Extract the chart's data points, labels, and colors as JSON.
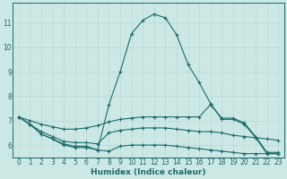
{
  "xlabel": "Humidex (Indice chaleur)",
  "background_color": "#cce8e4",
  "line_color": "#1a6b6b",
  "grid_color": "#b8d8d4",
  "xlim": [
    -0.5,
    23.5
  ],
  "ylim": [
    5.5,
    11.8
  ],
  "yticks": [
    6,
    7,
    8,
    9,
    10,
    11
  ],
  "xticks": [
    0,
    1,
    2,
    3,
    4,
    5,
    6,
    7,
    8,
    9,
    10,
    11,
    12,
    13,
    14,
    15,
    16,
    17,
    18,
    19,
    20,
    21,
    22,
    23
  ],
  "line1_x": [
    0,
    1,
    2,
    3,
    4,
    5,
    6,
    7,
    8,
    9,
    10,
    11,
    12,
    13,
    14,
    15,
    16,
    17,
    18,
    19,
    20,
    21,
    22,
    23
  ],
  "line1_y": [
    7.15,
    6.85,
    6.45,
    6.25,
    6.05,
    5.95,
    5.95,
    5.8,
    7.65,
    9.0,
    10.55,
    11.1,
    11.35,
    11.2,
    10.5,
    9.3,
    8.55,
    7.7,
    7.05,
    7.05,
    6.85,
    6.3,
    5.65,
    5.65
  ],
  "line2_x": [
    0,
    1,
    2,
    3,
    4,
    5,
    6,
    7,
    8,
    9,
    10,
    11,
    12,
    13,
    14,
    15,
    16,
    17,
    18,
    19,
    20,
    21,
    22,
    23
  ],
  "line2_y": [
    7.15,
    6.85,
    6.45,
    6.25,
    6.0,
    5.9,
    5.9,
    5.8,
    5.75,
    5.95,
    6.0,
    6.0,
    6.0,
    6.0,
    5.95,
    5.9,
    5.85,
    5.8,
    5.75,
    5.7,
    5.65,
    5.65,
    5.65,
    5.65
  ],
  "line3_x": [
    0,
    1,
    2,
    3,
    4,
    5,
    6,
    7,
    8,
    9,
    10,
    11,
    12,
    13,
    14,
    15,
    16,
    17,
    18,
    19,
    20,
    21,
    22,
    23
  ],
  "line3_y": [
    7.15,
    6.85,
    6.55,
    6.35,
    6.15,
    6.1,
    6.1,
    6.05,
    6.5,
    6.6,
    6.65,
    6.7,
    6.7,
    6.7,
    6.65,
    6.6,
    6.55,
    6.55,
    6.5,
    6.4,
    6.35,
    6.3,
    6.25,
    6.2
  ],
  "line4_x": [
    0,
    1,
    2,
    3,
    4,
    5,
    6,
    7,
    8,
    9,
    10,
    11,
    12,
    13,
    14,
    15,
    16,
    17,
    18,
    19,
    20,
    21,
    22,
    23
  ],
  "line4_y": [
    7.15,
    7.0,
    6.85,
    6.75,
    6.65,
    6.65,
    6.7,
    6.8,
    6.95,
    7.05,
    7.1,
    7.15,
    7.15,
    7.15,
    7.15,
    7.15,
    7.15,
    7.65,
    7.1,
    7.1,
    6.9,
    6.35,
    5.7,
    5.7
  ]
}
